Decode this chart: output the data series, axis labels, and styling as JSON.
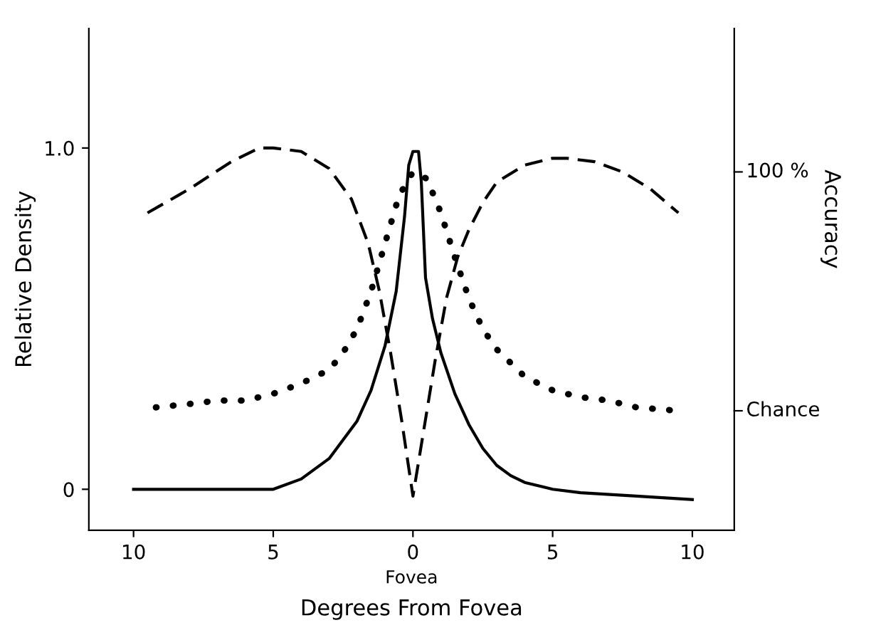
{
  "chart_data": {
    "type": "line",
    "xlabel": "Degrees From Fovea",
    "ylabel": "Relative Density",
    "xlim": [
      -11.6,
      11.5
    ],
    "xticks": [
      {
        "value": -10,
        "label": "10"
      },
      {
        "value": -5,
        "label": "5"
      },
      0,
      5,
      10
    ],
    "ylim": [
      -0.12,
      1.35
    ],
    "yticks": [
      0,
      {
        "value": 1,
        "label": "1.0"
      }
    ],
    "annotations": [
      "Fovea",
      "Accuracy",
      "100 %",
      "Chance"
    ],
    "grid": false,
    "legend": false,
    "marker": "none",
    "series": [
      {
        "color": "#000000",
        "line_style": "solid",
        "x": [
          -10,
          -7,
          -5,
          -4,
          -3,
          -2,
          -1.5,
          -1,
          -0.6,
          -0.3,
          -0.15,
          0,
          0.2,
          0.3,
          0.45,
          0.7,
          1,
          1.5,
          2,
          2.5,
          3,
          3.5,
          4,
          5,
          6,
          8,
          10
        ],
        "values": [
          0,
          0,
          0,
          0.03,
          0.09,
          0.2,
          0.29,
          0.42,
          0.58,
          0.8,
          0.95,
          0.99,
          0.99,
          0.9,
          0.62,
          0.5,
          0.4,
          0.28,
          0.19,
          0.12,
          0.07,
          0.04,
          0.02,
          0.0,
          -0.01,
          -0.02,
          -0.03
        ]
      },
      {
        "color": "#000000",
        "line_style": "dashed",
        "x": [
          -9.5,
          -8,
          -6.5,
          -5.5,
          -5,
          -4,
          -3,
          -2.2,
          -1.6,
          -1.2,
          -0.8,
          -0.4,
          0,
          0.4,
          0.8,
          1.2,
          1.6,
          2,
          2.5,
          3,
          4,
          5,
          5.5,
          6.5,
          7.5,
          8.5,
          9.5
        ],
        "values": [
          0.81,
          0.88,
          0.96,
          1.0,
          1.0,
          0.99,
          0.94,
          0.85,
          0.72,
          0.58,
          0.4,
          0.2,
          -0.02,
          0.18,
          0.38,
          0.56,
          0.68,
          0.76,
          0.84,
          0.9,
          0.95,
          0.97,
          0.97,
          0.96,
          0.93,
          0.88,
          0.81
        ]
      },
      {
        "color": "#000000",
        "line_style": "dotted",
        "x": [
          -9.2,
          -8,
          -7,
          -6,
          -5,
          -4,
          -3,
          -2.5,
          -2,
          -1.5,
          -1,
          -0.5,
          0,
          0.5,
          1,
          1.5,
          2,
          2.5,
          3,
          4,
          5,
          6,
          7,
          8,
          9.5
        ],
        "values": [
          0.24,
          0.25,
          0.26,
          0.26,
          0.28,
          0.31,
          0.35,
          0.4,
          0.47,
          0.58,
          0.72,
          0.86,
          0.93,
          0.91,
          0.81,
          0.68,
          0.56,
          0.47,
          0.41,
          0.33,
          0.29,
          0.27,
          0.26,
          0.24,
          0.23
        ]
      }
    ]
  }
}
